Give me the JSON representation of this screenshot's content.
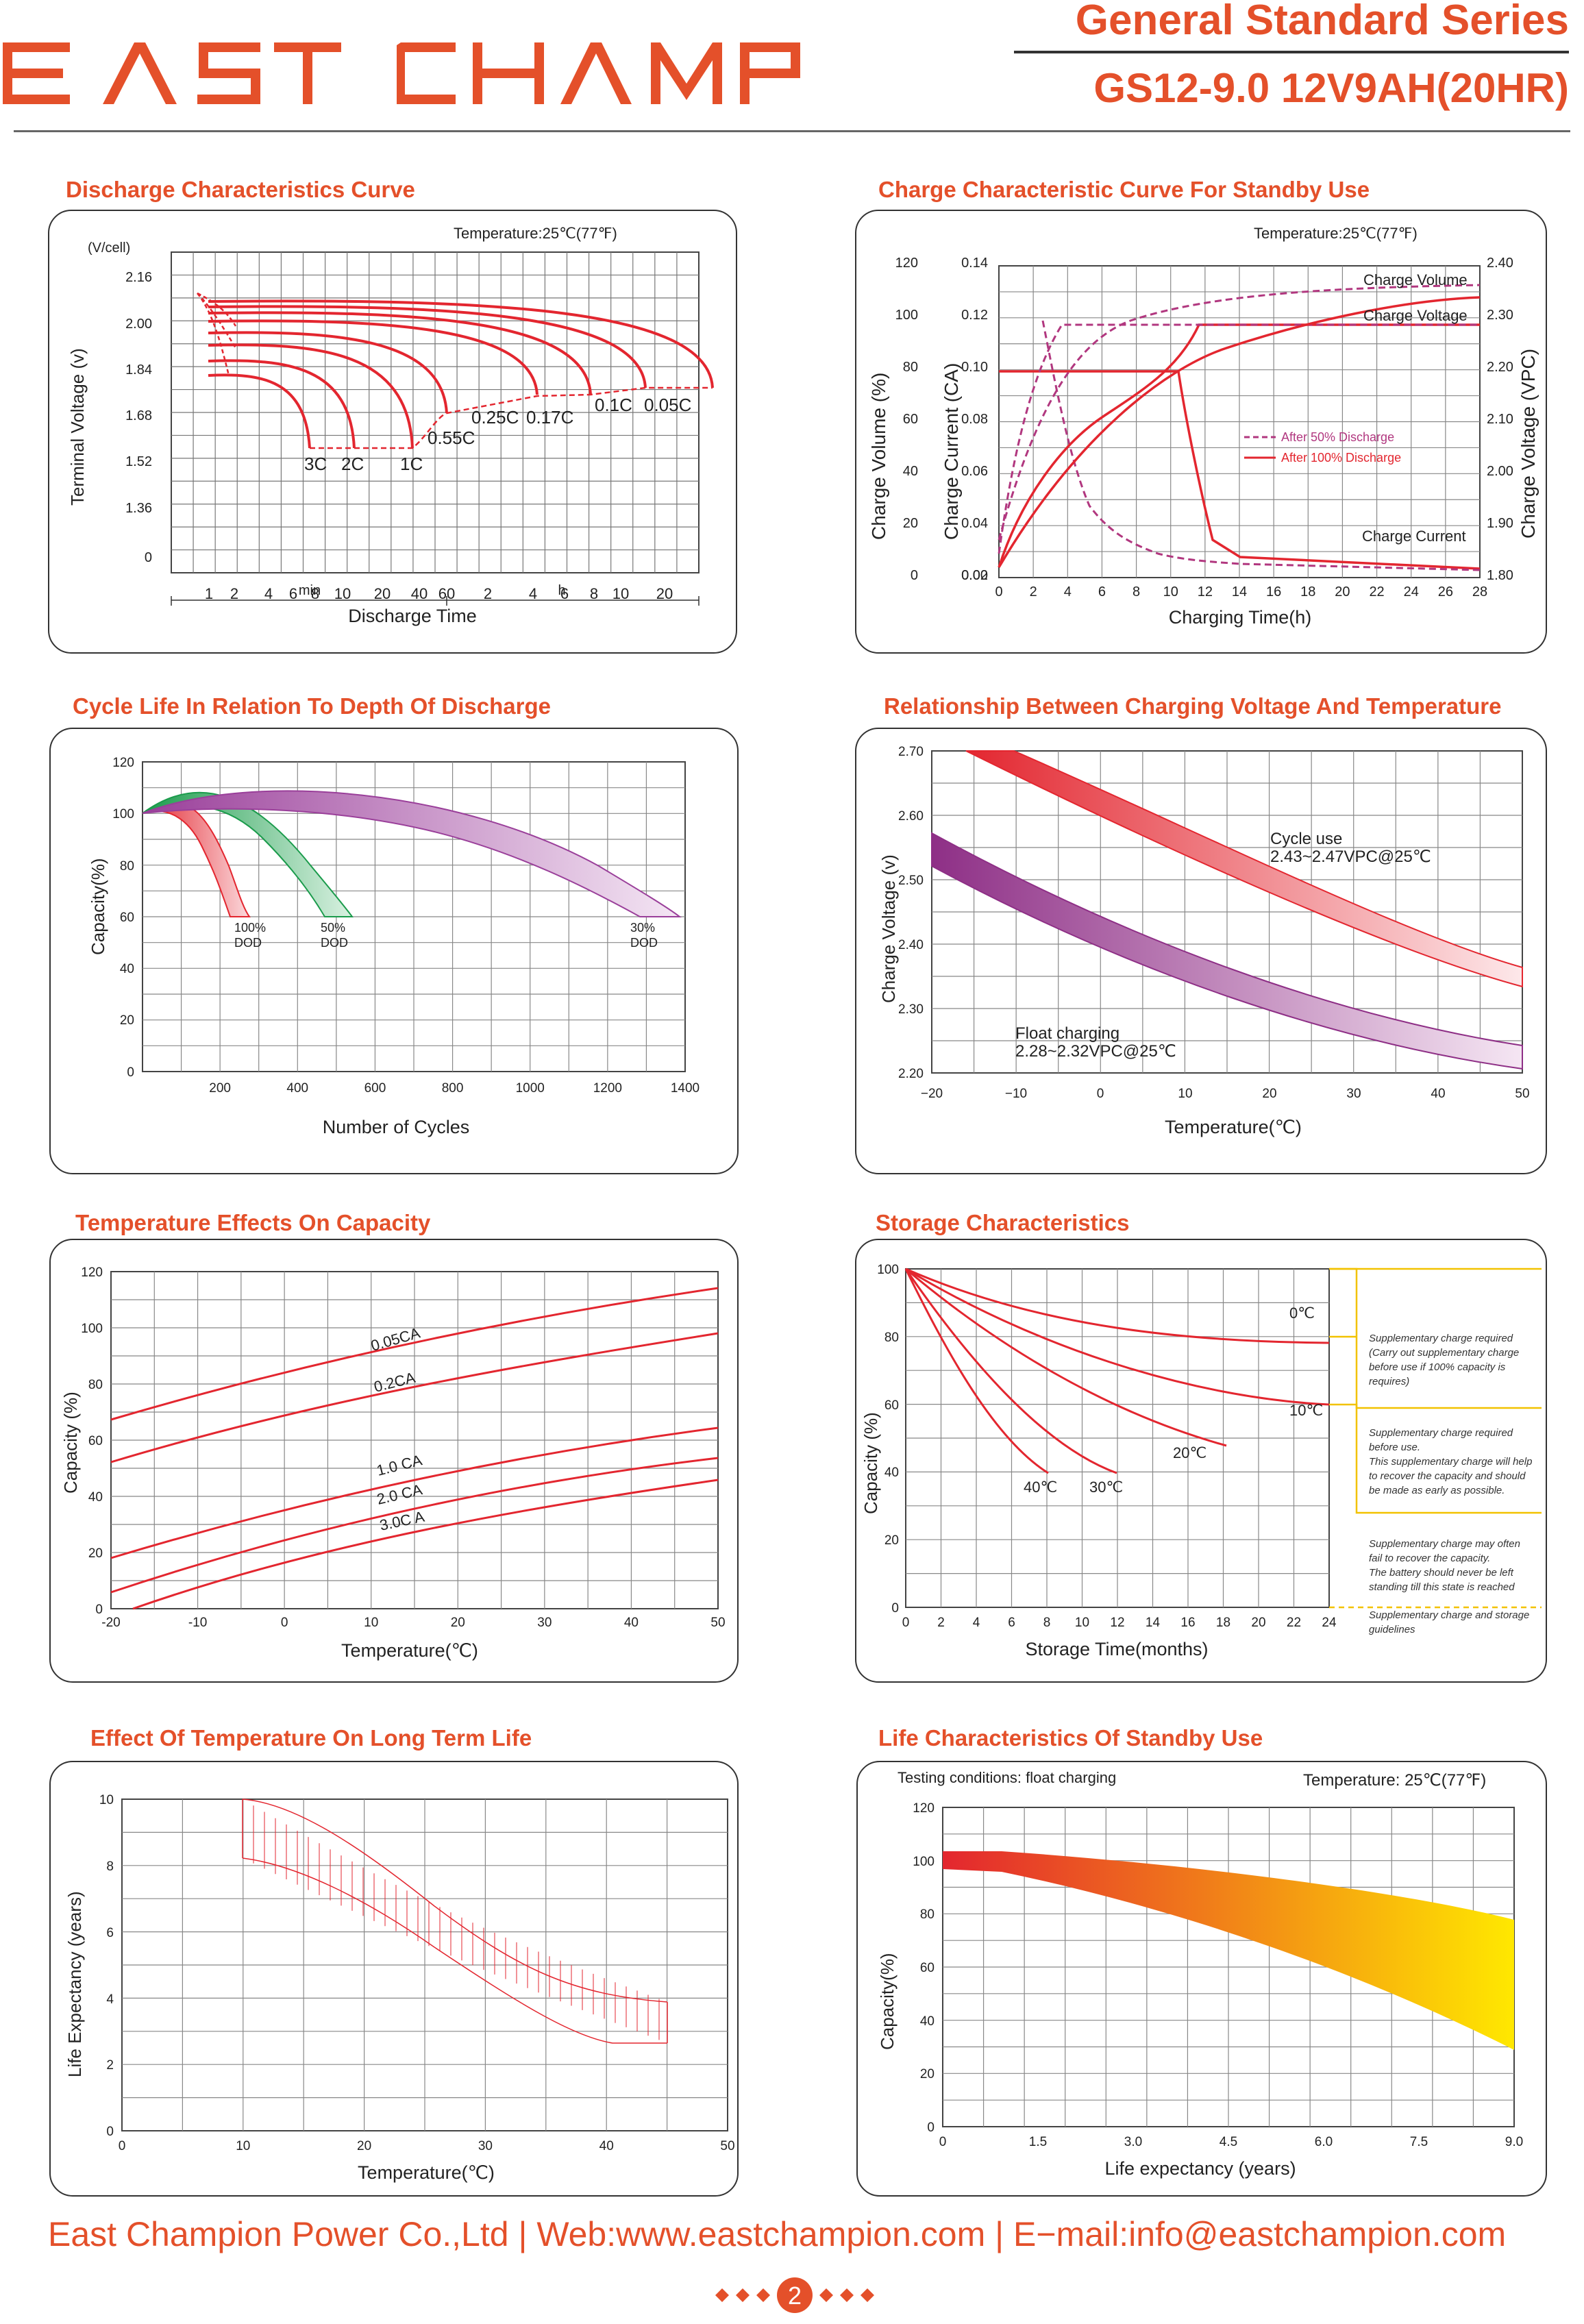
{
  "brand": {
    "logo_text": "EAST CHAMP",
    "color": "#e4502a"
  },
  "header": {
    "series": "General Standard Series",
    "model": "GS12-9.0 12V9AH(20HR)"
  },
  "colors": {
    "accent": "#e4502a",
    "red": "#e3262f",
    "magenta": "#b1377f",
    "green": "#1a9b4b",
    "purple": "#9a3f9a",
    "yellow": "#ffe500"
  },
  "panels": {
    "discharge": {
      "title": "Discharge Characteristics Curve",
      "temperature": "Temperature:25℃(77℉)",
      "unit": "(V/cell)",
      "ylabel": "Terminal  Voltage  (v)",
      "yticks": [
        "2.16",
        "2.00",
        "1.84",
        "1.68",
        "1.52",
        "1.36",
        "0"
      ],
      "xticks_min": [
        "1",
        "2",
        "4",
        "6",
        "8",
        "10",
        "20",
        "40",
        "60"
      ],
      "xticks_h": [
        "2",
        "4",
        "6",
        "8",
        "10",
        "20"
      ],
      "min_label": "min",
      "h_label": "h",
      "xlabel": "Discharge Time",
      "curve_labels": [
        "3C",
        "2C",
        "1C",
        "0.55C",
        "0.25C",
        "0.17C",
        "0.1C",
        "0.05C"
      ]
    },
    "charge": {
      "title": "Charge Characteristic Curve For Standby Use",
      "temperature": "Temperature:25℃(77℉)",
      "ylabel_vol": "Charge Volume (%)",
      "ylabel_cur": "Charge Current (CA)",
      "ylabel_v": "Charge Voltage (VPC)",
      "yticks_vol": [
        "120",
        "100",
        "80",
        "60",
        "40",
        "20",
        "0"
      ],
      "yticks_cur": [
        "0.14",
        "0.12",
        "0.10",
        "0.08",
        "0.06",
        "0.04",
        "0.02",
        "0.00"
      ],
      "yticks_v": [
        "2.40",
        "2.30",
        "2.20",
        "2.10",
        "2.00",
        "1.90",
        "1.80"
      ],
      "xticks": [
        "0",
        "2",
        "4",
        "6",
        "8",
        "10",
        "12",
        "14",
        "16",
        "18",
        "20",
        "22",
        "24",
        "26",
        "28"
      ],
      "xlabel": "Charging Time(h)",
      "label_volume": "Charge Volume",
      "label_voltage": "Charge Voltage",
      "label_current": "Charge Current",
      "legend": [
        "After 50% Discharge",
        "After 100% Discharge"
      ]
    },
    "cycle": {
      "title": "Cycle Life In Relation To Depth Of Discharge",
      "ylabel": "Capacity(%)",
      "xlabel": "Number of Cycles",
      "yticks": [
        "120",
        "100",
        "80",
        "60",
        "40",
        "20",
        "0"
      ],
      "xticks": [
        "200",
        "400",
        "600",
        "800",
        "1000",
        "1200",
        "1400"
      ],
      "dod100": [
        "100%",
        "DOD"
      ],
      "dod50": [
        "50%",
        "DOD"
      ],
      "dod30": [
        "30%",
        "DOD"
      ]
    },
    "voltage_temp": {
      "title": "Relationship Between Charging Voltage And Temperature",
      "ylabel": "Charge Voltage   (v)",
      "xlabel": "Temperature(℃)",
      "yticks": [
        "2.70",
        "2.60",
        "2.50",
        "2.40",
        "2.30",
        "2.20"
      ],
      "xticks": [
        "−20",
        "−10",
        "0",
        "10",
        "20",
        "30",
        "40",
        "50"
      ],
      "cycle_use": [
        "Cycle use",
        "2.43~2.47VPC@25℃"
      ],
      "float": [
        "Float charging",
        "2.28~2.32VPC@25℃"
      ]
    },
    "temp_capacity": {
      "title": "Temperature Effects On Capacity",
      "ylabel": "Capacity  (%)",
      "xlabel": "Temperature(℃)",
      "yticks": [
        "120",
        "100",
        "80",
        "60",
        "40",
        "20",
        "0"
      ],
      "xticks": [
        "-20",
        "-10",
        "0",
        "10",
        "20",
        "30",
        "40",
        "50"
      ],
      "curve_labels": [
        "0.05CA",
        "0.2CA",
        "1.0 CA",
        "2.0 CA",
        "3.0C A"
      ]
    },
    "storage": {
      "title": "Storage Characteristics",
      "ylabel": "Capacity  (%)",
      "xlabel": "Storage Time(months)",
      "yticks": [
        "100",
        "80",
        "60",
        "40",
        "20",
        "0"
      ],
      "xticks": [
        "0",
        "2",
        "4",
        "6",
        "8",
        "10",
        "12",
        "14",
        "16",
        "18",
        "20",
        "22",
        "24"
      ],
      "temp_labels": [
        "0℃",
        "10℃",
        "20℃",
        "30℃",
        "40℃"
      ],
      "notes": [
        [
          "Supplementary charge required",
          "(Carry out supplementary charge",
          "before use if 100% capacity is",
          "requires)"
        ],
        [
          "Supplementary charge required",
          "before use.",
          "This supplementary charge will help",
          "to recover the capacity and should",
          "be made  as early as possible."
        ],
        [
          "Supplementary charge may often",
          "fail to recover the capacity.",
          "The battery should never be left",
          "standing till this state is reached"
        ],
        [
          "Supplementary charge and storage",
          "guidelines"
        ]
      ]
    },
    "longlife": {
      "title": "Effect Of Temperature On Long Term Life",
      "ylabel": "Life Expectancy  (years)",
      "xlabel": "Temperature(℃)",
      "yticks": [
        "10",
        "8",
        "6",
        "4",
        "2",
        "0"
      ],
      "xticks": [
        "0",
        "10",
        "20",
        "30",
        "40",
        "50"
      ]
    },
    "standby": {
      "title": "Life Characteristics Of Standby Use",
      "conditions": "Testing conditions: float charging",
      "temperature": "Temperature: 25℃(77℉)",
      "ylabel": "Capacity(%)",
      "xlabel": "Life expectancy (years)",
      "yticks": [
        "120",
        "100",
        "80",
        "60",
        "40",
        "20",
        "0"
      ],
      "xticks": [
        "0",
        "1.5",
        "3.0",
        "4.5",
        "6.0",
        "7.5",
        "9.0"
      ]
    }
  },
  "footer": {
    "text": "East Champion Power Co.,Ltd | Web:www.eastchampion.com | E−mail:info@eastchampion.com",
    "page": "2"
  }
}
